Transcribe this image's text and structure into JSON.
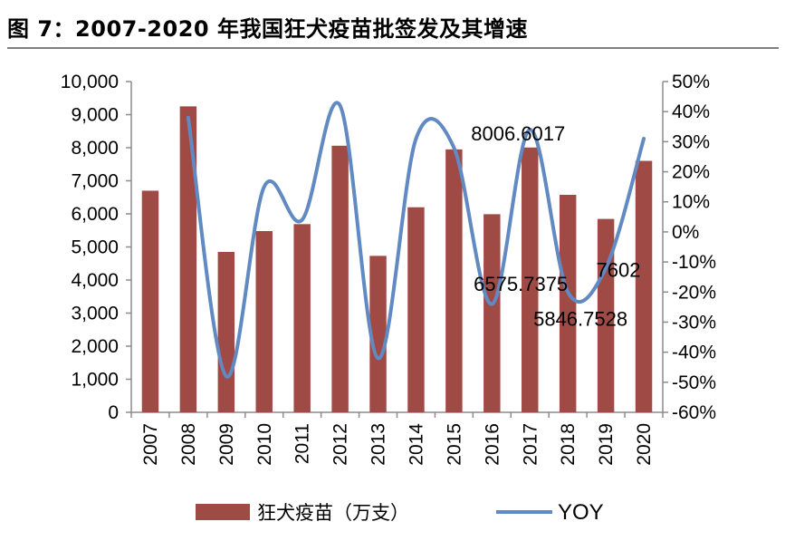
{
  "figure_title": "图 7：2007-2020 年我国狂犬疫苗批签发及其增速",
  "chart_data": {
    "type": "bar",
    "title": "图 7：2007-2020 年我国狂犬疫苗批签发及其增速",
    "categories": [
      "2007",
      "2008",
      "2009",
      "2010",
      "2011",
      "2012",
      "2013",
      "2014",
      "2015",
      "2016",
      "2017",
      "2018",
      "2019",
      "2020"
    ],
    "series": [
      {
        "name": "狂犬疫苗（万支）",
        "type": "bar",
        "axis": "left",
        "color": "#a04a46",
        "values": [
          6700,
          9250,
          4850,
          5480,
          5690,
          8060,
          4730,
          6200,
          7950,
          5990,
          8006.6017,
          6575.7375,
          5846.7528,
          7602
        ]
      },
      {
        "name": "YOY",
        "type": "line",
        "axis": "right",
        "color": "#6189c2",
        "values": [
          null,
          38,
          -48,
          15,
          4,
          42,
          -42,
          31,
          28,
          -24,
          34,
          -20,
          -12,
          31
        ]
      }
    ],
    "data_labels": [
      {
        "index": 10,
        "text": "8006.6017"
      },
      {
        "index": 11,
        "text": "6575.7375"
      },
      {
        "index": 12,
        "text": "5846.7528"
      },
      {
        "index": 13,
        "text": "7602"
      }
    ],
    "y_left": {
      "ylim": [
        0,
        10000
      ],
      "ticks": [
        0,
        1000,
        2000,
        3000,
        4000,
        5000,
        6000,
        7000,
        8000,
        9000,
        10000
      ],
      "tick_labels": [
        "0",
        "1,000",
        "2,000",
        "3,000",
        "4,000",
        "5,000",
        "6,000",
        "7,000",
        "8,000",
        "9,000",
        "10,000"
      ]
    },
    "y_right": {
      "ylim": [
        -60,
        50
      ],
      "ticks": [
        -60,
        -50,
        -40,
        -30,
        -20,
        -10,
        0,
        10,
        20,
        30,
        40,
        50
      ],
      "tick_labels": [
        "-60%",
        "-50%",
        "-40%",
        "-30%",
        "-20%",
        "-10%",
        "0%",
        "10%",
        "20%",
        "30%",
        "40%",
        "50%"
      ]
    },
    "legend": {
      "position": "bottom",
      "items": [
        {
          "label": "狂犬疫苗（万支）",
          "kind": "bar",
          "color": "#a04a46"
        },
        {
          "label": "YOY",
          "kind": "line",
          "color": "#6189c2"
        }
      ]
    },
    "grid": false
  }
}
